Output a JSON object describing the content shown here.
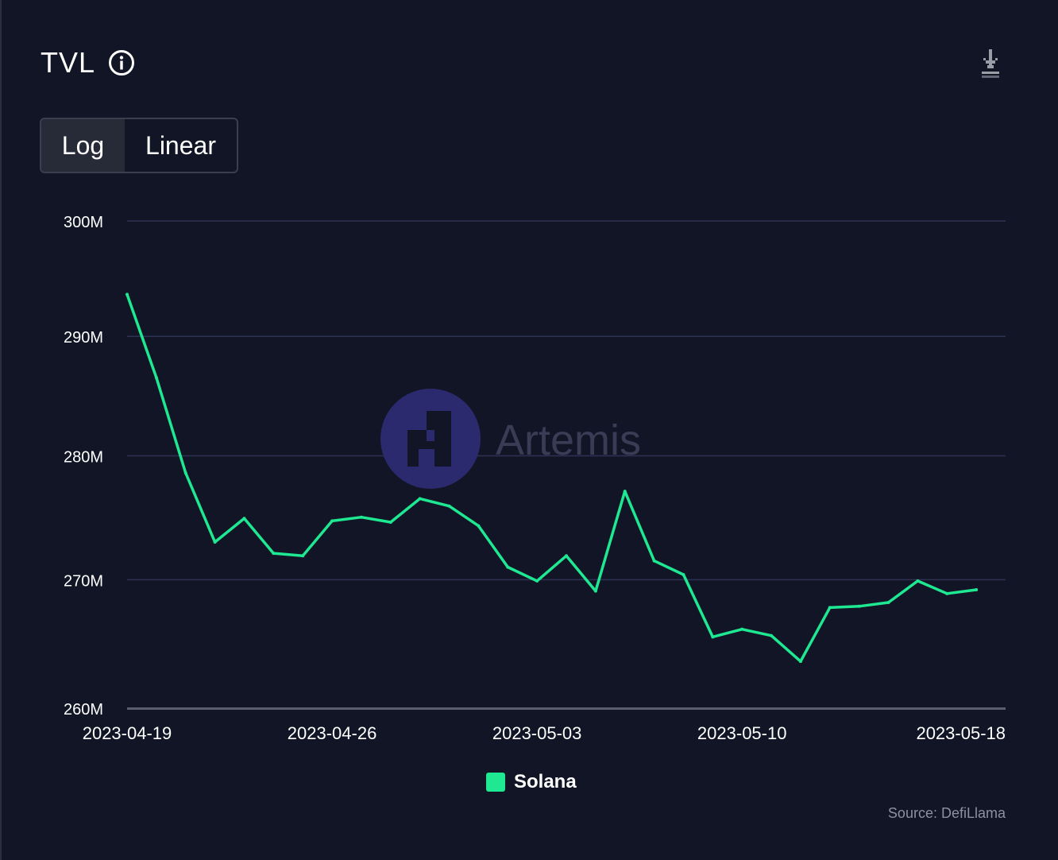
{
  "header": {
    "title": "TVL"
  },
  "toggle": {
    "log_label": "Log",
    "linear_label": "Linear",
    "selected": "Log"
  },
  "icons": {
    "info": "info-icon",
    "download": "download-icon"
  },
  "watermark": {
    "text": "Artemis",
    "color": "#2c2a6e"
  },
  "source": "Source: DefiLlama",
  "colors": {
    "background": "#111525",
    "grid": "#2e3354",
    "axis": "#5a5e6e",
    "series": "#1ee892"
  },
  "chart_data": {
    "type": "line",
    "title": "TVL",
    "xlabel": "",
    "ylabel": "",
    "yscale": "log",
    "ylim": [
      260000000,
      300000000
    ],
    "yticks": [
      300000000,
      290000000,
      280000000,
      270000000,
      260000000
    ],
    "ytick_labels": [
      "300M",
      "290M",
      "280M",
      "270M",
      "260M"
    ],
    "xticks": [
      "2023-04-19",
      "2023-04-26",
      "2023-05-03",
      "2023-05-10",
      "2023-05-18"
    ],
    "xlim": [
      "2023-04-19",
      "2023-05-19"
    ],
    "grid": true,
    "legend_position": "bottom-center",
    "series": [
      {
        "name": "Solana",
        "color": "#1ee892",
        "x": [
          "2023-04-19",
          "2023-04-20",
          "2023-04-21",
          "2023-04-22",
          "2023-04-23",
          "2023-04-24",
          "2023-04-25",
          "2023-04-26",
          "2023-04-27",
          "2023-04-28",
          "2023-04-29",
          "2023-04-30",
          "2023-05-01",
          "2023-05-02",
          "2023-05-03",
          "2023-05-04",
          "2023-05-05",
          "2023-05-06",
          "2023-05-07",
          "2023-05-08",
          "2023-05-09",
          "2023-05-10",
          "2023-05-11",
          "2023-05-12",
          "2023-05-13",
          "2023-05-14",
          "2023-05-15",
          "2023-05-16",
          "2023-05-17",
          "2023-05-18"
        ],
        "values": [
          293600000,
          286500000,
          278600000,
          273000000,
          274900000,
          272100000,
          271900000,
          274700000,
          275000000,
          274600000,
          276500000,
          275900000,
          274300000,
          271000000,
          269900000,
          271900000,
          269100000,
          277100000,
          271500000,
          270400000,
          265500000,
          266100000,
          265600000,
          263600000,
          267800000,
          267900000,
          268200000,
          269900000,
          268900000,
          269200000
        ]
      }
    ]
  }
}
